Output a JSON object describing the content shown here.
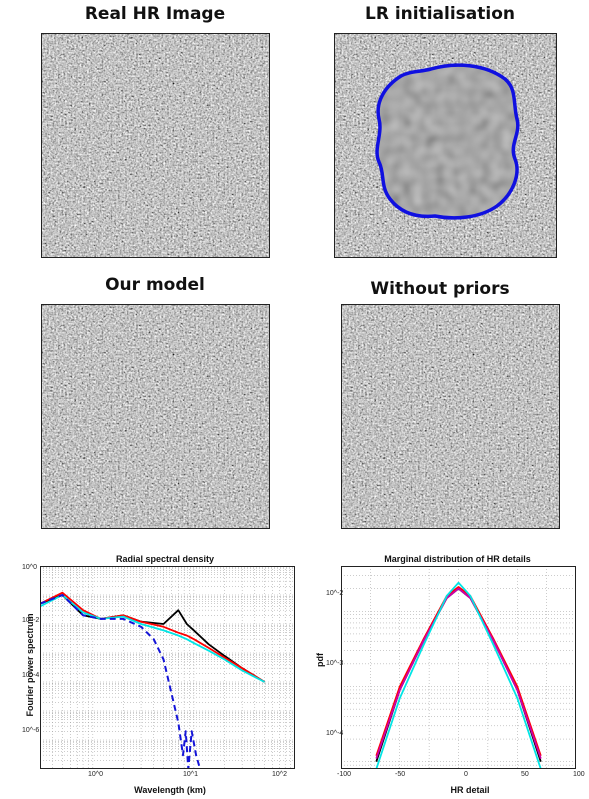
{
  "panels": {
    "real_hr": "Real HR Image",
    "lr_init": "LR initialisation",
    "our_model": "Our model",
    "without_priors": "Without priors"
  },
  "colors": {
    "contour": "#1010e0",
    "black_series": "#000000",
    "red_series": "#ff0000",
    "cyan_series": "#00e5e5",
    "blue_dashed": "#1414d8",
    "magenta_series": "#cc00aa"
  },
  "chart_data": [
    {
      "type": "line",
      "title": "Radial spectral density",
      "xlabel": "Wavelength (km)",
      "ylabel": "Fourier power spectrum",
      "xscale": "log",
      "yscale": "log",
      "xlim": [
        0.3,
        100
      ],
      "ylim": [
        1e-07,
        1
      ],
      "xtick_labels": [
        "10^0",
        "10^1",
        "10^2"
      ],
      "ytick_labels": [
        "10^0",
        "10^-2",
        "10^-4",
        "10^-6"
      ],
      "grid": true,
      "series": [
        {
          "color": "black",
          "style": "solid",
          "x": [
            0.3,
            0.5,
            0.8,
            1.2,
            2,
            3,
            5,
            7,
            8.5,
            10,
            14,
            20,
            30,
            50
          ],
          "y": [
            0.05,
            0.1,
            0.02,
            0.015,
            0.02,
            0.012,
            0.01,
            0.03,
            0.01,
            0.006,
            0.002,
            0.0008,
            0.0003,
            0.0001
          ]
        },
        {
          "color": "red",
          "style": "solid",
          "x": [
            0.3,
            0.5,
            0.8,
            1.2,
            2,
            3,
            5,
            7,
            8.5,
            10,
            14,
            20,
            30,
            50
          ],
          "y": [
            0.05,
            0.12,
            0.03,
            0.015,
            0.02,
            0.012,
            0.008,
            0.005,
            0.004,
            0.003,
            0.0015,
            0.0007,
            0.0003,
            0.0001
          ]
        },
        {
          "color": "cyan",
          "style": "solid",
          "x": [
            0.3,
            0.5,
            0.8,
            1.2,
            2,
            3,
            5,
            7,
            8.5,
            10,
            14,
            20,
            30,
            50
          ],
          "y": [
            0.04,
            0.1,
            0.025,
            0.015,
            0.018,
            0.01,
            0.006,
            0.004,
            0.003,
            0.0022,
            0.0012,
            0.0006,
            0.00025,
            0.0001
          ]
        },
        {
          "color": "blue",
          "style": "dashed",
          "x": [
            0.3,
            0.5,
            0.8,
            1.2,
            2,
            3,
            4,
            5,
            6,
            7,
            7.8,
            8.3,
            8.8,
            9.5,
            10.5,
            11.5
          ],
          "y": [
            0.05,
            0.1,
            0.02,
            0.015,
            0.015,
            0.008,
            0.003,
            0.0006,
            4e-05,
            4e-06,
            3e-07,
            2e-06,
            1e-07,
            2e-06,
            3e-07,
            1e-07
          ]
        }
      ]
    },
    {
      "type": "line",
      "title": "Marginal distribution of HR details",
      "xlabel": "HR detail",
      "ylabel": "pdf",
      "yscale": "log",
      "xlim": [
        -100,
        100
      ],
      "ylim": [
        8e-05,
        0.04
      ],
      "xtick_labels": [
        "-100",
        "-50",
        "0",
        "50",
        "100"
      ],
      "ytick_labels": [
        "10^-2",
        "10^-3",
        "10^-4"
      ],
      "grid": true,
      "series": [
        {
          "color": "black",
          "x": [
            -70,
            -50,
            -30,
            -10,
            0,
            10,
            30,
            50,
            70
          ],
          "y": [
            0.0001,
            0.0009,
            0.004,
            0.015,
            0.02,
            0.015,
            0.004,
            0.0009,
            0.0001
          ]
        },
        {
          "color": "red",
          "x": [
            -70,
            -50,
            -30,
            -10,
            0,
            10,
            30,
            50,
            70
          ],
          "y": [
            0.00012,
            0.001,
            0.0042,
            0.016,
            0.021,
            0.016,
            0.0042,
            0.001,
            0.00012
          ]
        },
        {
          "color": "magenta",
          "x": [
            -70,
            -50,
            -30,
            -10,
            0,
            10,
            30,
            50,
            70
          ],
          "y": [
            0.00011,
            0.0009,
            0.004,
            0.015,
            0.02,
            0.015,
            0.004,
            0.0009,
            0.00011
          ]
        },
        {
          "color": "cyan",
          "x": [
            -70,
            -50,
            -30,
            -10,
            0,
            10,
            30,
            50,
            70
          ],
          "y": [
            8e-05,
            0.0007,
            0.0035,
            0.016,
            0.024,
            0.016,
            0.0035,
            0.0007,
            8e-05
          ]
        }
      ]
    }
  ]
}
